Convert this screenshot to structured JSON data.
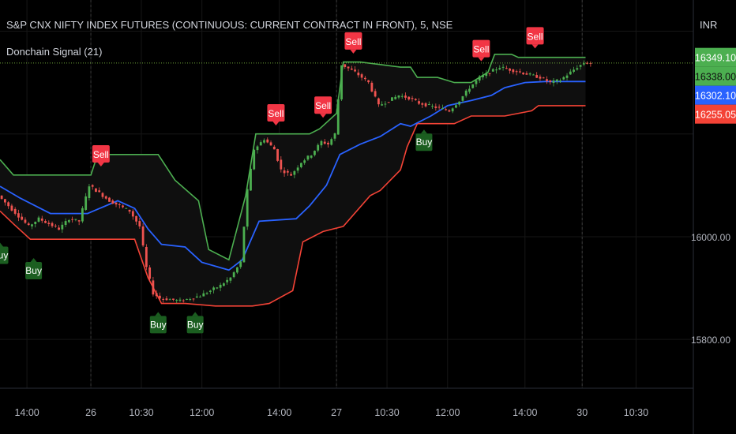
{
  "header": {
    "title": "S&P CNX NIFTY INDEX FUTURES (CONTINUOUS: CURRENT CONTRACT IN FRONT), 5, NSE",
    "indicator": "Donchain Signal (21)",
    "currency": "INR"
  },
  "colors": {
    "background": "#000000",
    "grid": "#161616",
    "upper_band": "#4caf50",
    "lower_band": "#f44336",
    "middle_band": "#2962ff",
    "band_fill": "#0f0f0f",
    "candle_up": "#4caf50",
    "candle_down": "#ef5350",
    "last_price_line": "#6fa83a",
    "sell_badge": "#f23645",
    "buy_badge": "#1b5e20"
  },
  "chart_data": {
    "type": "candlestick",
    "indicator": "Donchian channel (21)",
    "ylim": [
      15705,
      16430
    ],
    "xlim": [
      0,
      176
    ],
    "yticks": [
      16000.0,
      15800.0
    ],
    "ytick_labels": [
      "16000.00",
      "15800.00"
    ],
    "xticks": [
      {
        "x": 8,
        "label": "14:00"
      },
      {
        "x": 27,
        "label": "26"
      },
      {
        "x": 42,
        "label": "10:30"
      },
      {
        "x": 60,
        "label": "12:00"
      },
      {
        "x": 83,
        "label": "14:00"
      },
      {
        "x": 100,
        "label": "27"
      },
      {
        "x": 115,
        "label": "10:30"
      },
      {
        "x": 133,
        "label": "12:00"
      },
      {
        "x": 156,
        "label": "14:00"
      },
      {
        "x": 173,
        "label": "30"
      }
    ],
    "extra_xtick": {
      "x": 189,
      "label": "10:30"
    },
    "price_labels": [
      {
        "value": 16349.1,
        "label": "16349.10",
        "role": "upper"
      },
      {
        "value": 16338.0,
        "label": "16338.00",
        "role": "last"
      },
      {
        "value": 16302.1,
        "label": "16302.10",
        "role": "middle"
      },
      {
        "value": 16255.05,
        "label": "16255.05",
        "role": "lower"
      }
    ],
    "last_price": 16338.0,
    "upper": [
      [
        0,
        16150
      ],
      [
        4,
        16120
      ],
      [
        27,
        16120
      ],
      [
        29,
        16160
      ],
      [
        47,
        16160
      ],
      [
        52,
        16110
      ],
      [
        59,
        16070
      ],
      [
        62,
        15975
      ],
      [
        68,
        15955
      ],
      [
        73,
        16080
      ],
      [
        76,
        16200
      ],
      [
        92,
        16200
      ],
      [
        95,
        16210
      ],
      [
        100,
        16240
      ],
      [
        102,
        16340
      ],
      [
        107,
        16340
      ],
      [
        119,
        16330
      ],
      [
        122,
        16330
      ],
      [
        124,
        16310
      ],
      [
        130,
        16310
      ],
      [
        135,
        16300
      ],
      [
        140,
        16300
      ],
      [
        145,
        16320
      ],
      [
        147,
        16355
      ],
      [
        152,
        16355
      ],
      [
        154,
        16349
      ],
      [
        174,
        16349
      ]
    ],
    "lower": [
      [
        0,
        16050
      ],
      [
        4,
        16025
      ],
      [
        9,
        15995
      ],
      [
        25,
        15995
      ],
      [
        40,
        15995
      ],
      [
        44,
        15920
      ],
      [
        48,
        15870
      ],
      [
        55,
        15870
      ],
      [
        64,
        15865
      ],
      [
        75,
        15865
      ],
      [
        80,
        15870
      ],
      [
        87,
        15895
      ],
      [
        90,
        15990
      ],
      [
        96,
        16010
      ],
      [
        102,
        16020
      ],
      [
        110,
        16080
      ],
      [
        113,
        16090
      ],
      [
        119,
        16130
      ],
      [
        121,
        16175
      ],
      [
        124,
        16220
      ],
      [
        135,
        16220
      ],
      [
        140,
        16235
      ],
      [
        150,
        16235
      ],
      [
        158,
        16245
      ],
      [
        160,
        16255
      ],
      [
        174,
        16255
      ]
    ],
    "middle": [
      [
        0,
        16098
      ],
      [
        6,
        16075
      ],
      [
        15,
        16045
      ],
      [
        26,
        16045
      ],
      [
        35,
        16070
      ],
      [
        40,
        16055
      ],
      [
        44,
        16015
      ],
      [
        48,
        15985
      ],
      [
        55,
        15980
      ],
      [
        60,
        15950
      ],
      [
        68,
        15935
      ],
      [
        72,
        15955
      ],
      [
        77,
        16030
      ],
      [
        88,
        16035
      ],
      [
        92,
        16060
      ],
      [
        97,
        16100
      ],
      [
        101,
        16160
      ],
      [
        107,
        16180
      ],
      [
        113,
        16195
      ],
      [
        119,
        16220
      ],
      [
        122,
        16215
      ],
      [
        128,
        16235
      ],
      [
        133,
        16255
      ],
      [
        140,
        16265
      ],
      [
        146,
        16275
      ],
      [
        150,
        16290
      ],
      [
        156,
        16300
      ],
      [
        162,
        16302
      ],
      [
        174,
        16302
      ]
    ],
    "price": [
      [
        0,
        16080
      ],
      [
        3,
        16060
      ],
      [
        6,
        16040
      ],
      [
        9,
        16020
      ],
      [
        12,
        16035
      ],
      [
        15,
        16025
      ],
      [
        18,
        16015
      ],
      [
        21,
        16035
      ],
      [
        24,
        16030
      ],
      [
        27,
        16100
      ],
      [
        30,
        16085
      ],
      [
        33,
        16070
      ],
      [
        36,
        16060
      ],
      [
        39,
        16050
      ],
      [
        42,
        16020
      ],
      [
        44,
        15940
      ],
      [
        46,
        15890
      ],
      [
        48,
        15880
      ],
      [
        51,
        15878
      ],
      [
        54,
        15875
      ],
      [
        57,
        15880
      ],
      [
        60,
        15885
      ],
      [
        63,
        15895
      ],
      [
        66,
        15905
      ],
      [
        69,
        15920
      ],
      [
        72,
        15950
      ],
      [
        74,
        16090
      ],
      [
        76,
        16170
      ],
      [
        79,
        16190
      ],
      [
        82,
        16170
      ],
      [
        84,
        16130
      ],
      [
        87,
        16120
      ],
      [
        90,
        16145
      ],
      [
        93,
        16160
      ],
      [
        96,
        16185
      ],
      [
        98,
        16180
      ],
      [
        100,
        16200
      ],
      [
        102,
        16335
      ],
      [
        106,
        16320
      ],
      [
        110,
        16300
      ],
      [
        113,
        16255
      ],
      [
        116,
        16265
      ],
      [
        119,
        16275
      ],
      [
        122,
        16270
      ],
      [
        125,
        16260
      ],
      [
        128,
        16255
      ],
      [
        131,
        16250
      ],
      [
        134,
        16245
      ],
      [
        137,
        16265
      ],
      [
        140,
        16290
      ],
      [
        143,
        16310
      ],
      [
        146,
        16320
      ],
      [
        149,
        16330
      ],
      [
        152,
        16325
      ],
      [
        155,
        16320
      ],
      [
        158,
        16315
      ],
      [
        161,
        16310
      ],
      [
        164,
        16300
      ],
      [
        167,
        16305
      ],
      [
        170,
        16320
      ],
      [
        172,
        16330
      ],
      [
        174,
        16338
      ]
    ],
    "signals": [
      {
        "type": "buy",
        "label": "Buy",
        "x": 0,
        "y": 15990
      },
      {
        "type": "buy",
        "label": "Buy",
        "x": 10,
        "y": 15960
      },
      {
        "type": "sell",
        "label": "Sell",
        "x": 30,
        "y": 16135
      },
      {
        "type": "buy",
        "label": "Buy",
        "x": 47,
        "y": 15855
      },
      {
        "type": "buy",
        "label": "Buy",
        "x": 58,
        "y": 15855
      },
      {
        "type": "sell",
        "label": "Sell",
        "x": 82,
        "y": 16215
      },
      {
        "type": "sell",
        "label": "Sell",
        "x": 96,
        "y": 16230
      },
      {
        "type": "sell",
        "label": "Sell",
        "x": 105,
        "y": 16355
      },
      {
        "type": "buy",
        "label": "Buy",
        "x": 126,
        "y": 16210
      },
      {
        "type": "sell",
        "label": "Sell",
        "x": 143,
        "y": 16340
      },
      {
        "type": "sell",
        "label": "Sell",
        "x": 159,
        "y": 16365
      }
    ]
  }
}
